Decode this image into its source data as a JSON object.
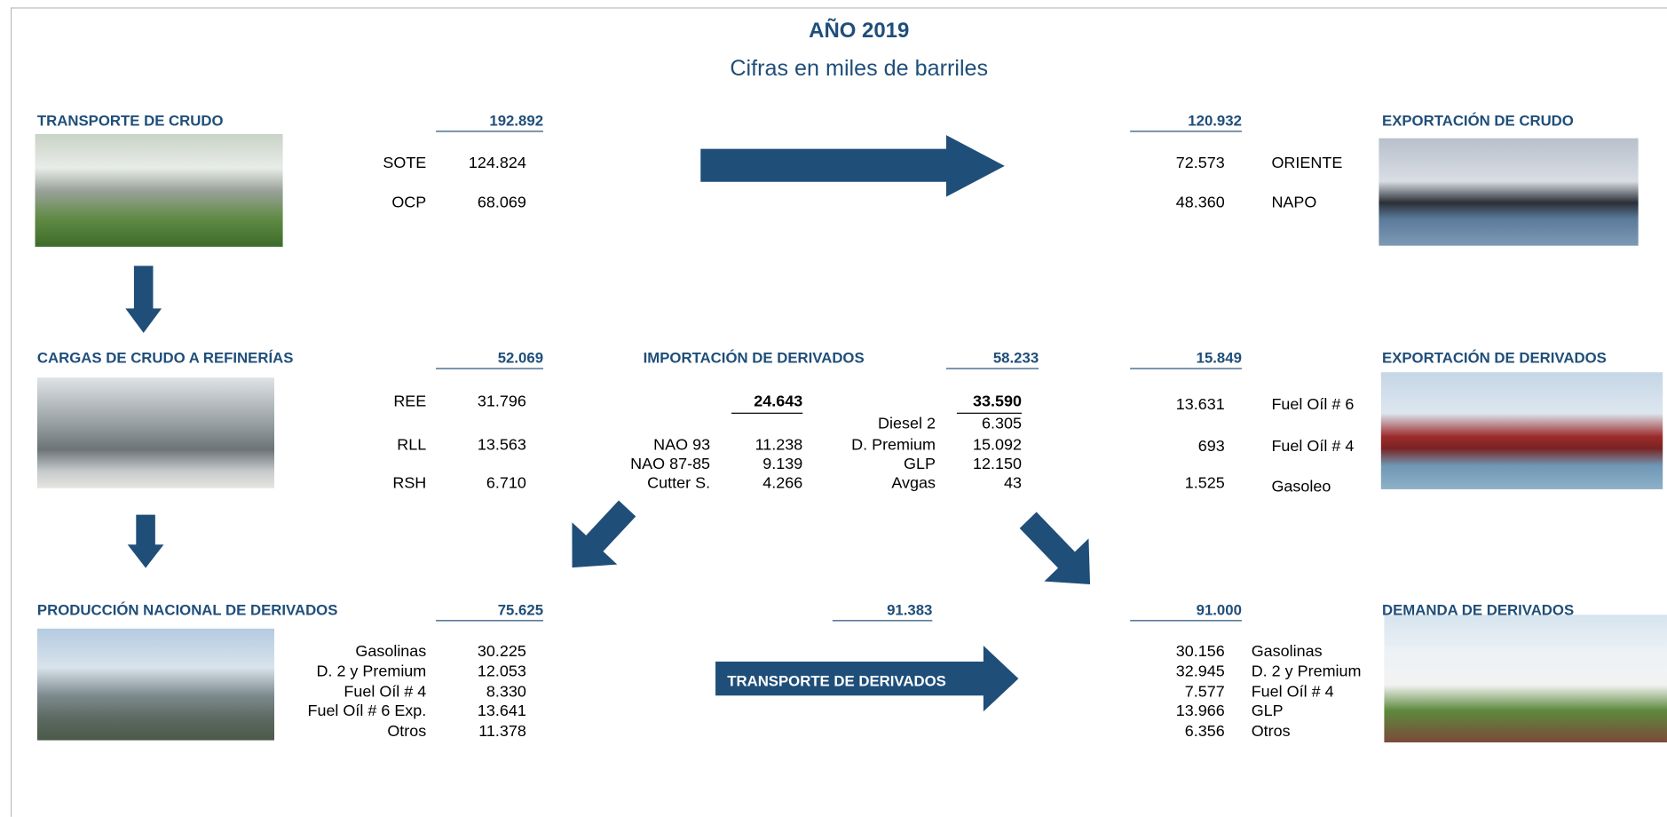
{
  "title": "AÑO 2019",
  "subtitle": "Cifras en miles de barriles",
  "transporte_crudo": {
    "title": "TRANSPORTE DE CRUDO",
    "total": "192.892",
    "rows": [
      [
        "SOTE",
        "124.824"
      ],
      [
        "OCP",
        "68.069"
      ]
    ]
  },
  "exportacion_crudo": {
    "title": "EXPORTACIÓN DE CRUDO",
    "total": "120.932",
    "rows": [
      [
        "ORIENTE",
        "72.573"
      ],
      [
        "NAPO",
        "48.360"
      ]
    ]
  },
  "cargas": {
    "title": "CARGAS DE CRUDO A REFINERÍAS",
    "total": "52.069",
    "rows": [
      [
        "REE",
        "31.796"
      ],
      [
        "RLL",
        "13.563"
      ],
      [
        "RSH",
        "6.710"
      ]
    ]
  },
  "importacion": {
    "title": "IMPORTACIÓN DE DERIVADOS",
    "total": "58.233",
    "left": {
      "subtotal": "24.643",
      "rows": [
        [
          "NAO 93",
          "11.238"
        ],
        [
          "NAO 87-85",
          "9.139"
        ],
        [
          "Cutter S.",
          "4.266"
        ]
      ]
    },
    "right": {
      "subtotal": "33.590",
      "rows": [
        [
          "Diesel 2",
          "6.305"
        ],
        [
          "D. Premium",
          "15.092"
        ],
        [
          "GLP",
          "12.150"
        ],
        [
          "Avgas",
          "43"
        ]
      ]
    }
  },
  "exportacion_derivados": {
    "title": "EXPORTACIÓN DE DERIVADOS",
    "total": "15.849",
    "rows": [
      [
        "Fuel Oíl # 6",
        "13.631"
      ],
      [
        "Fuel Oíl # 4",
        "693"
      ],
      [
        "Gasoleo",
        "1.525"
      ]
    ]
  },
  "produccion": {
    "title": "PRODUCCIÓN NACIONAL DE DERIVADOS",
    "total": "75.625",
    "rows": [
      [
        "Gasolinas",
        "30.225"
      ],
      [
        "D. 2 y Premium",
        "12.053"
      ],
      [
        "Fuel Oíl # 4",
        "8.330"
      ],
      [
        "Fuel Oíl # 6 Exp.",
        "13.641"
      ],
      [
        "Otros",
        "11.378"
      ]
    ]
  },
  "transporte_derivados": {
    "title": "TRANSPORTE DE DERIVADOS",
    "total": "91.383"
  },
  "demanda": {
    "title": "DEMANDA DE DERIVADOS",
    "total": "91.000",
    "rows": [
      [
        "Gasolinas",
        "30.156"
      ],
      [
        "D. 2 y Premium",
        "32.945"
      ],
      [
        "Fuel Oíl # 4",
        "7.577"
      ],
      [
        "GLP",
        "13.966"
      ],
      [
        "Otros",
        "6.356"
      ]
    ]
  }
}
